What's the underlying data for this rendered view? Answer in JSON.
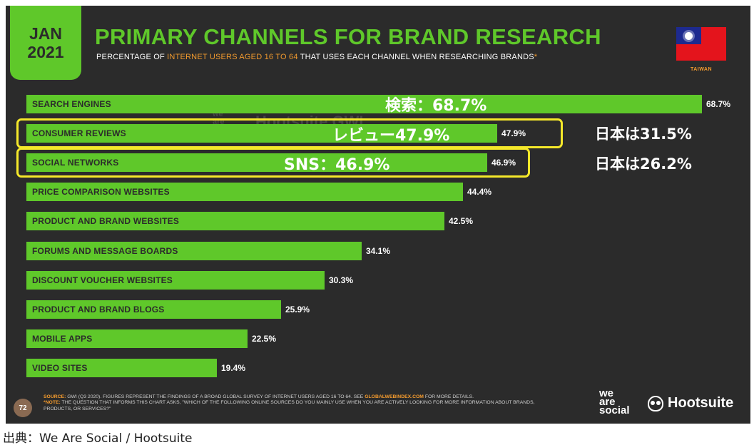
{
  "header": {
    "date_month": "JAN",
    "date_year": "2021",
    "title": "PRIMARY CHANNELS FOR BRAND RESEARCH",
    "subtitle_pre": "PERCENTAGE OF ",
    "subtitle_highlight": "INTERNET USERS AGED 16 TO 64",
    "subtitle_post": " THAT USES EACH CHANNEL WHEN RESEARCHING BRANDS",
    "subtitle_star": "*",
    "flag_label": "TAIWAN"
  },
  "chart_data": {
    "type": "bar",
    "orientation": "horizontal",
    "categories": [
      "SEARCH ENGINES",
      "CONSUMER REVIEWS",
      "SOCIAL NETWORKS",
      "PRICE COMPARISON WEBSITES",
      "PRODUCT AND BRAND WEBSITES",
      "FORUMS AND MESSAGE BOARDS",
      "DISCOUNT VOUCHER WEBSITES",
      "PRODUCT AND BRAND BLOGS",
      "MOBILE APPS",
      "VIDEO SITES"
    ],
    "values": [
      68.7,
      47.9,
      46.9,
      44.4,
      42.5,
      34.1,
      30.3,
      25.9,
      22.5,
      19.4
    ],
    "value_labels": [
      "68.7%",
      "47.9%",
      "46.9%",
      "44.4%",
      "42.5%",
      "34.1%",
      "30.3%",
      "25.9%",
      "22.5%",
      "19.4%"
    ],
    "xlim": [
      0,
      68.7
    ],
    "bar_color": "#5fc82a"
  },
  "annotations": {
    "overlay_search": "検索：68.7%",
    "overlay_reviews": "レビュー47.9%",
    "overlay_sns": "SNS：46.9%",
    "note_japan_reviews": "日本は31.5%",
    "note_japan_sns": "日本は26.2%",
    "highlight_color": "#f5e82a"
  },
  "watermark": {
    "line1": "we",
    "line2": "are",
    "line3": "social",
    "brand": "Hootsuite  GWI"
  },
  "footer": {
    "page_number": "72",
    "source_key": "SOURCE:",
    "source_text": " GWI (Q3 2020). FIGURES REPRESENT THE FINDINGS OF A BROAD GLOBAL SURVEY OF INTERNET USERS AGED 16 TO 64. SEE ",
    "source_link": "GLOBALWEBINDEX.COM",
    "source_tail": " FOR MORE DETAILS.",
    "note_key": "*NOTE:",
    "note_text": " THE QUESTION THAT INFORMS THIS CHART ASKS, \"WHICH OF THE FOLLOWING ONLINE SOURCES DO YOU MAINLY USE WHEN YOU ARE ACTIVELY LOOKING FOR MORE INFORMATION ABOUT BRANDS, PRODUCTS, OR SERVICES?\"",
    "brand_we": "we",
    "brand_are": "are",
    "brand_social": "social",
    "brand_hootsuite": "Hootsuite"
  },
  "caption": "出典：We Are Social / Hootsuite"
}
